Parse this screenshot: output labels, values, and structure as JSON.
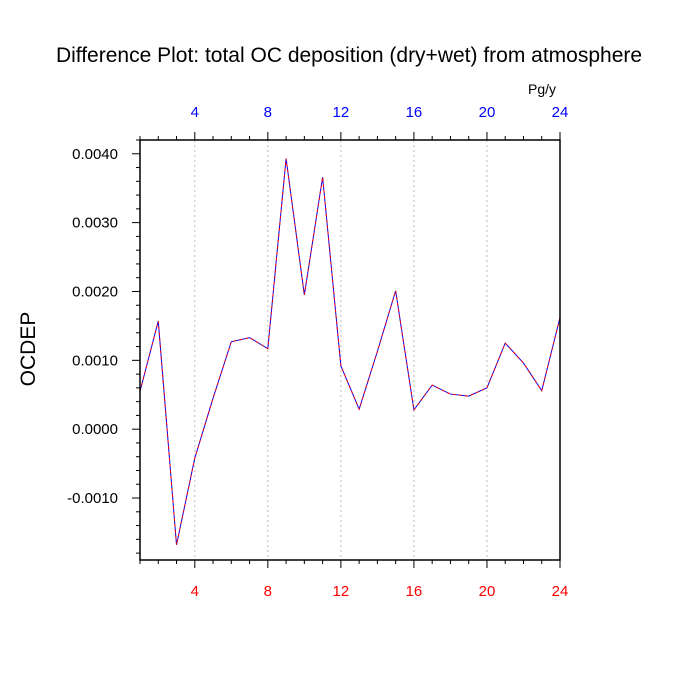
{
  "chart_data": {
    "type": "line",
    "title": "Difference Plot: total OC deposition (dry+wet) from atmosphere",
    "ylabel": "OCDEP",
    "xlabel": "",
    "units_label": "Pg/y",
    "xlim": [
      1,
      24
    ],
    "ylim": [
      -0.0019,
      0.0042
    ],
    "x_ticks": [
      4,
      8,
      12,
      16,
      20,
      24
    ],
    "x_tick_labels_bottom": [
      "4",
      "8",
      "12",
      "16",
      "20",
      "24"
    ],
    "x_tick_labels_top": [
      "4",
      "8",
      "12",
      "16",
      "20",
      "24"
    ],
    "y_ticks": [
      -0.001,
      0.0,
      0.001,
      0.002,
      0.003,
      0.004
    ],
    "y_tick_labels": [
      "-0.0010",
      "0.0000",
      "0.0010",
      "0.0020",
      "0.0030",
      "0.0040"
    ],
    "vertical_gridlines": true,
    "series": [
      {
        "line_color": "#0000ff",
        "overlay_color": "#ff0000",
        "dashed": true,
        "x": [
          1,
          2,
          3,
          4,
          5,
          6,
          7,
          8,
          9,
          10,
          11,
          12,
          13,
          14,
          15,
          16,
          17,
          18,
          19,
          20,
          21,
          22,
          23,
          24
        ],
        "values": [
          0.00055,
          0.00157,
          -0.00168,
          -0.00042,
          0.00045,
          0.00127,
          0.00133,
          0.00117,
          0.00393,
          0.00195,
          0.00366,
          0.00092,
          0.00029,
          0.00113,
          0.00201,
          0.00028,
          0.00064,
          0.00051,
          0.00048,
          0.0006,
          0.00125,
          0.00096,
          0.00056,
          0.00162
        ]
      }
    ],
    "colors": {
      "axis": "#000000",
      "grid": "#bbbbbb",
      "bottom_ticks": "#ff0000",
      "top_ticks": "#0000ff"
    }
  }
}
